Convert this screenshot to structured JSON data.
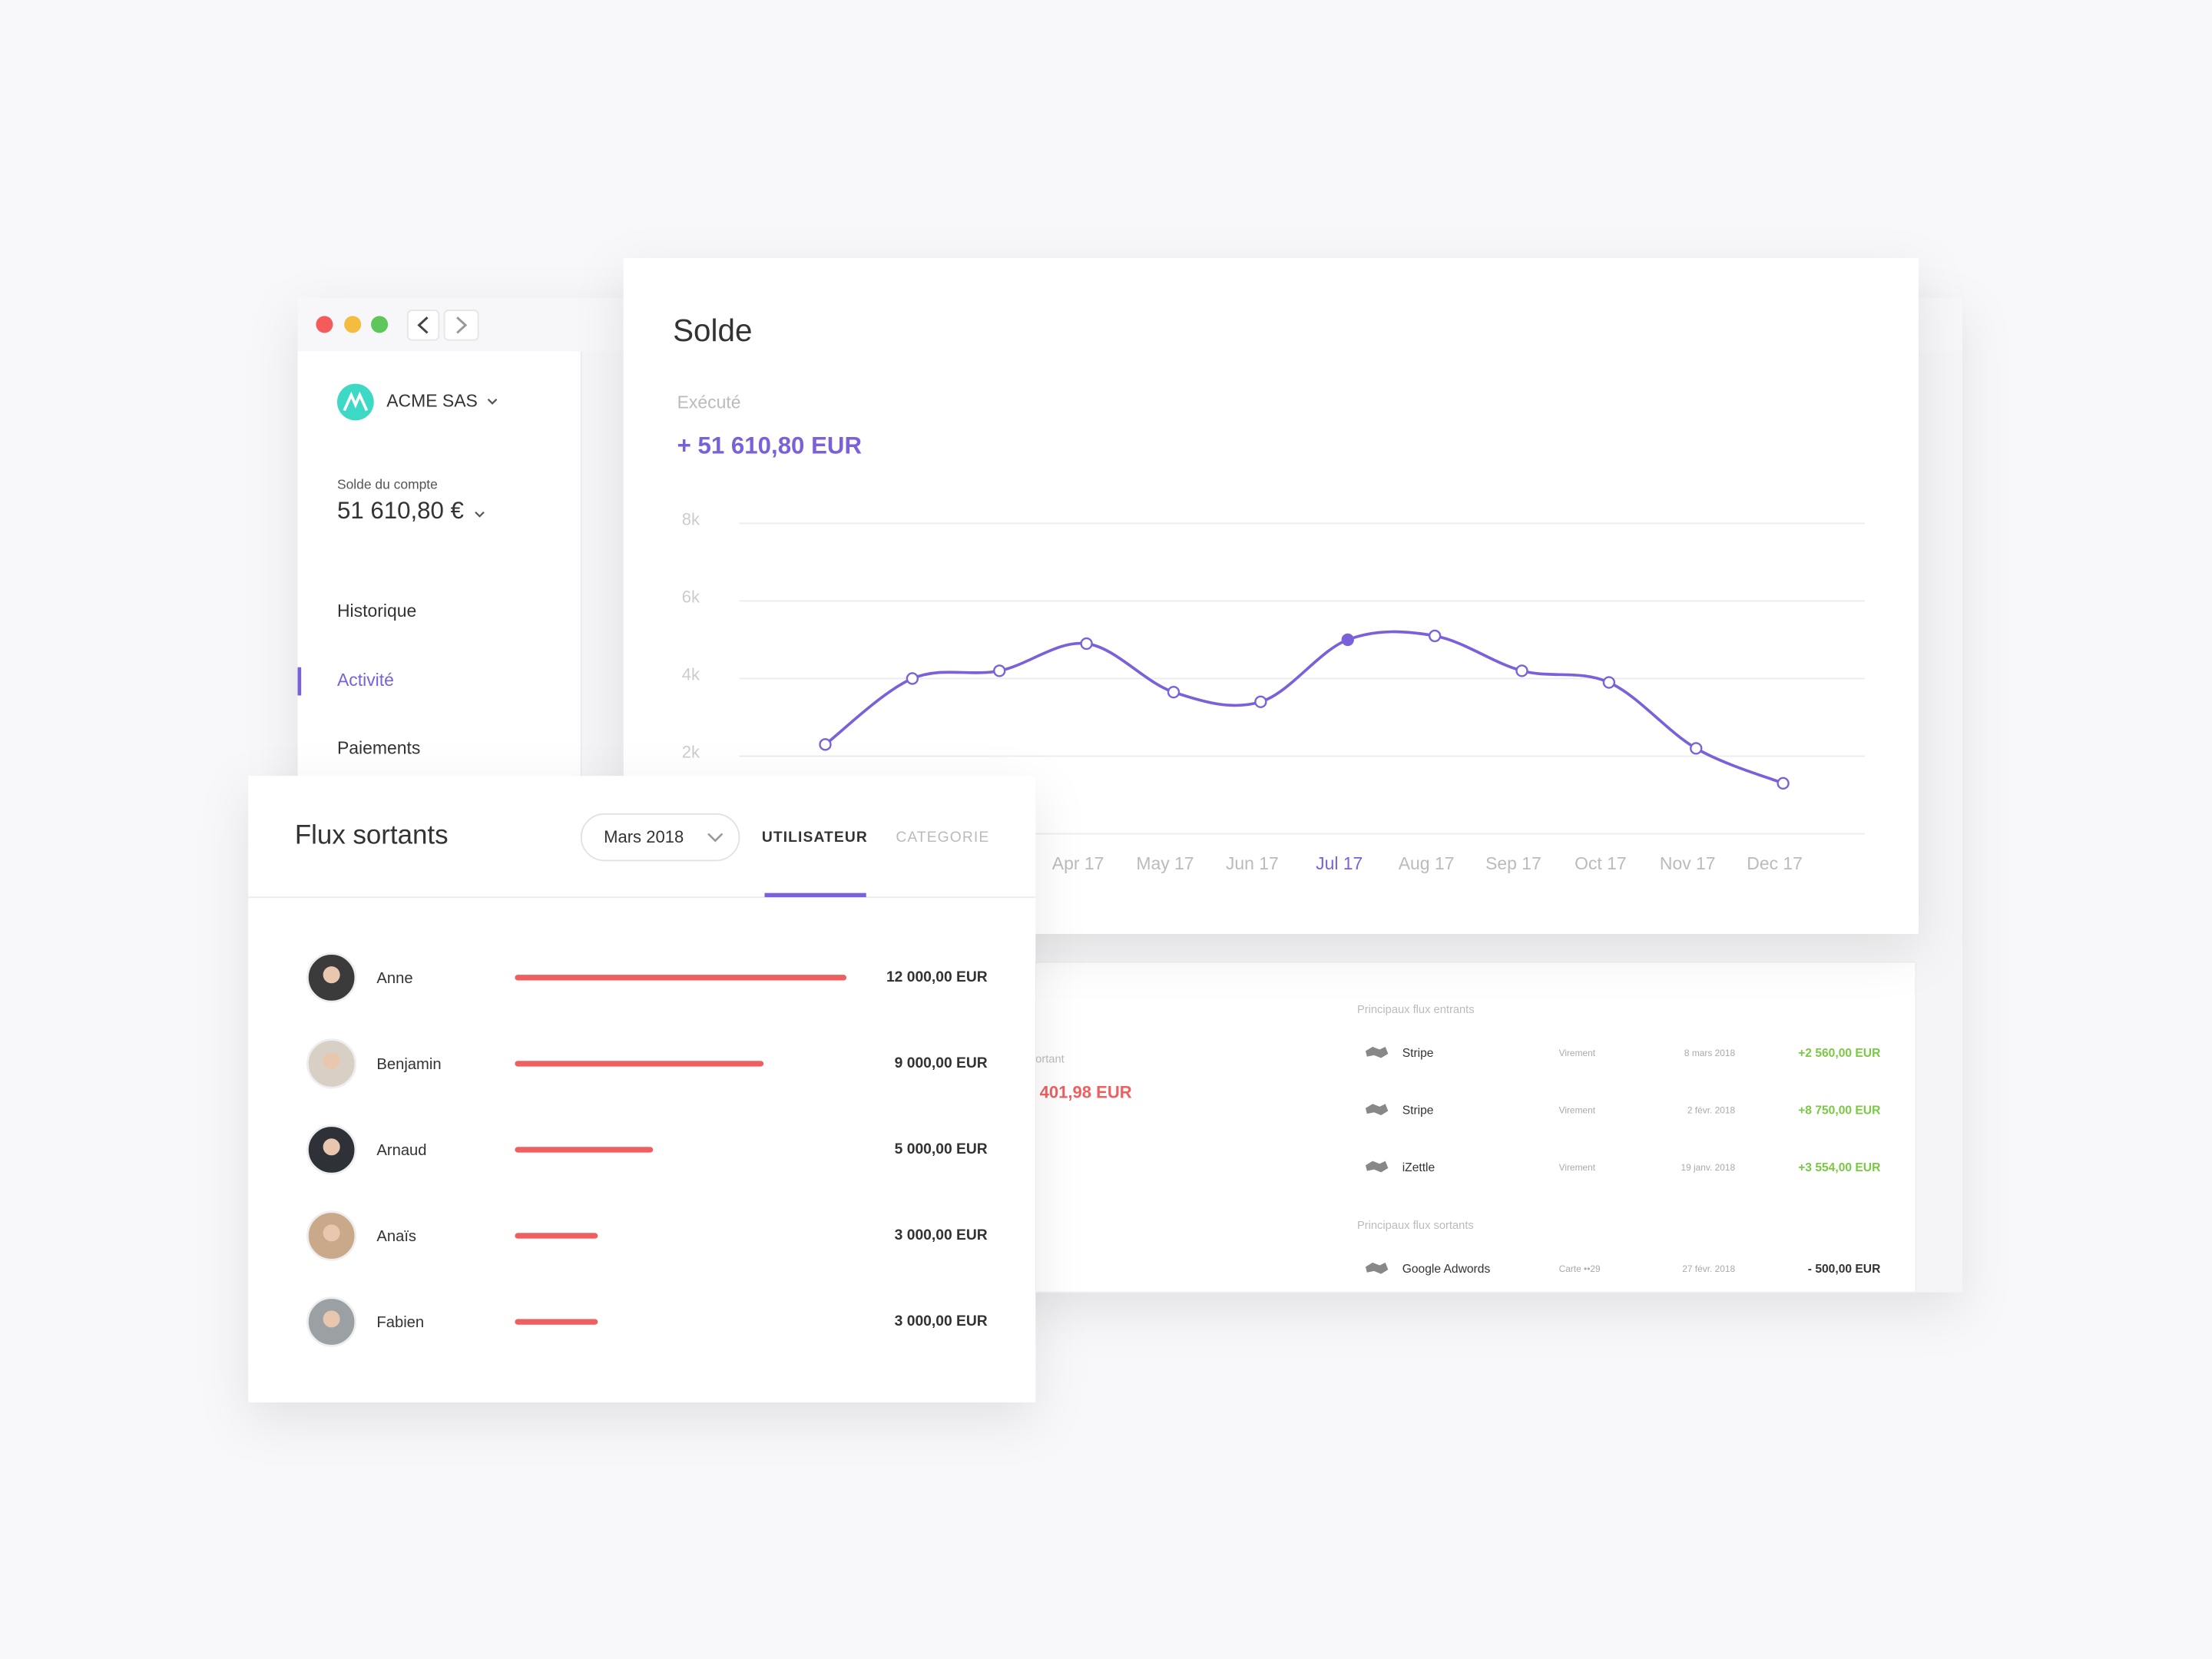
{
  "sidebar": {
    "company": "ACME SAS",
    "balance_label": "Solde du compte",
    "balance": "51 610,80 €",
    "nav": [
      "Historique",
      "Activité",
      "Paiements"
    ],
    "active": 1
  },
  "solde": {
    "title": "Solde",
    "status": "Exécuté",
    "amount": "+ 51 610,80 EUR",
    "chart": {
      "type": "line",
      "categories": [
        null,
        null,
        null,
        "Apr 17",
        "May 17",
        "Jun 17",
        "Jul 17",
        "Aug 17",
        "Sep 17",
        "Oct 17",
        "Nov 17",
        "Dec 17"
      ],
      "values": [
        2300,
        4000,
        4200,
        4900,
        3650,
        3400,
        5000,
        5100,
        4200,
        3900,
        2200,
        1300
      ],
      "color": "#7b61d9",
      "highlight": 6,
      "ylim": [
        0,
        8000
      ],
      "yticks": [
        {
          "value": 2000,
          "label": "2k"
        },
        {
          "value": 4000,
          "label": "4k"
        },
        {
          "value": 6000,
          "label": "6k"
        },
        {
          "value": 8000,
          "label": "8k"
        }
      ],
      "grid": true
    }
  },
  "flux": {
    "title": "Flux sortants",
    "period": "Mars 2018",
    "tabs": [
      "UTILISATEUR",
      "CATEGORIE"
    ],
    "active_tab": 0,
    "color": "#ef5f5f",
    "rows": [
      {
        "name": "Anne",
        "value": 12000,
        "label": "12 000,00 EUR"
      },
      {
        "name": "Benjamin",
        "value": 9000,
        "label": "9 000,00 EUR"
      },
      {
        "name": "Arnaud",
        "value": 5000,
        "label": "5 000,00 EUR"
      },
      {
        "name": "Anaïs",
        "value": 3000,
        "label": "3 000,00 EUR"
      },
      {
        "name": "Fabien",
        "value": 3000,
        "label": "3 000,00 EUR"
      }
    ]
  },
  "summary": {
    "partial_label": "ortant",
    "partial_amount": "401,98 EUR",
    "inflows": {
      "title": "Principaux flux entrants",
      "rows": [
        [
          "Stripe",
          "Virement",
          "8 mars 2018",
          "+2 560,00 EUR"
        ],
        [
          "Stripe",
          "Virement",
          "2 févr. 2018",
          "+8 750,00 EUR"
        ],
        [
          "iZettle",
          "Virement",
          "19 janv. 2018",
          "+3 554,00 EUR"
        ]
      ]
    },
    "outflows": {
      "title": "Principaux flux sortants",
      "rows": [
        [
          "Google Adwords",
          "Carte ••29",
          "27 févr. 2018",
          "- 500,00 EUR"
        ]
      ]
    }
  }
}
